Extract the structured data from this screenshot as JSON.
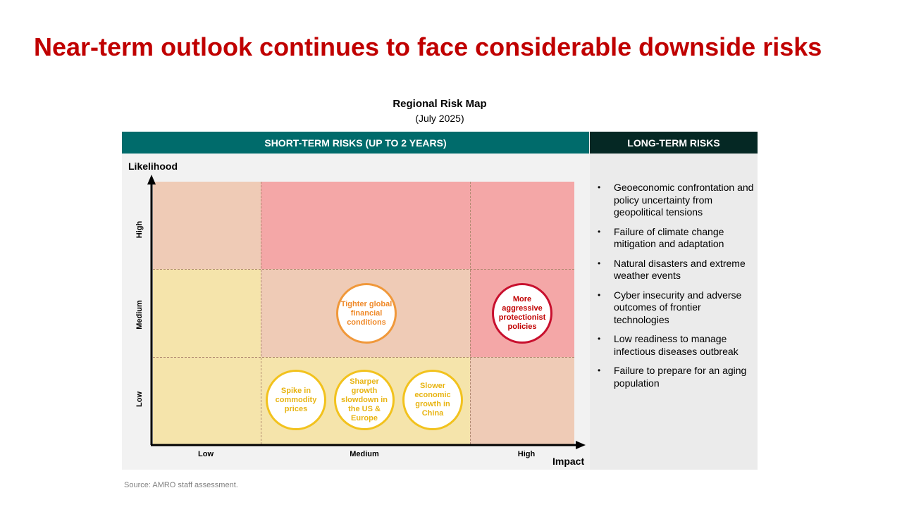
{
  "title": "Near-term outlook continues to face considerable downside risks",
  "map_title": "Regional Risk Map",
  "map_subtitle": "(July 2025)",
  "headers": {
    "short_term": "SHORT-TERM RISKS (UP TO 2 YEARS)",
    "long_term": "LONG-TERM RISKS"
  },
  "axes": {
    "y_title": "Likelihood",
    "x_title": "Impact",
    "y_levels": [
      "Low",
      "Medium",
      "High"
    ],
    "x_levels": [
      "Low",
      "Medium",
      "High"
    ]
  },
  "colors": {
    "title_red": "#c00000",
    "header_teal": "#006b6b",
    "header_dark": "#052824",
    "zone_yellow": "#f5e4ab",
    "zone_peach": "#efcbb6",
    "zone_pink": "#f4a7a7",
    "bubble_yellow": "#f2c21d",
    "bubble_orange": "#f0983a",
    "bubble_red": "#c8102e"
  },
  "risks": [
    {
      "label": "Tighter global financial conditions",
      "likelihood": "Medium",
      "impact": "Medium",
      "color": "orange"
    },
    {
      "label": "More aggressive protectionist policies",
      "likelihood": "Medium",
      "impact": "High",
      "color": "red"
    },
    {
      "label": "Spike in commodity prices",
      "likelihood": "Low",
      "impact": "Medium",
      "color": "yellow"
    },
    {
      "label": "Sharper growth slowdown in the US & Europe",
      "likelihood": "Low",
      "impact": "Medium",
      "color": "yellow"
    },
    {
      "label": "Slower economic growth in China",
      "likelihood": "Low",
      "impact": "Medium",
      "color": "yellow"
    }
  ],
  "long_term_risks": [
    "Geoeconomic confrontation and policy uncertainty from geopolitical tensions",
    "Failure of climate change mitigation and adaptation",
    "Natural disasters and extreme weather events",
    "Cyber insecurity and adverse outcomes of frontier technologies",
    "Low readiness to manage infectious diseases outbreak",
    "Failure to prepare for an aging population"
  ],
  "source": "Source: AMRO staff assessment."
}
